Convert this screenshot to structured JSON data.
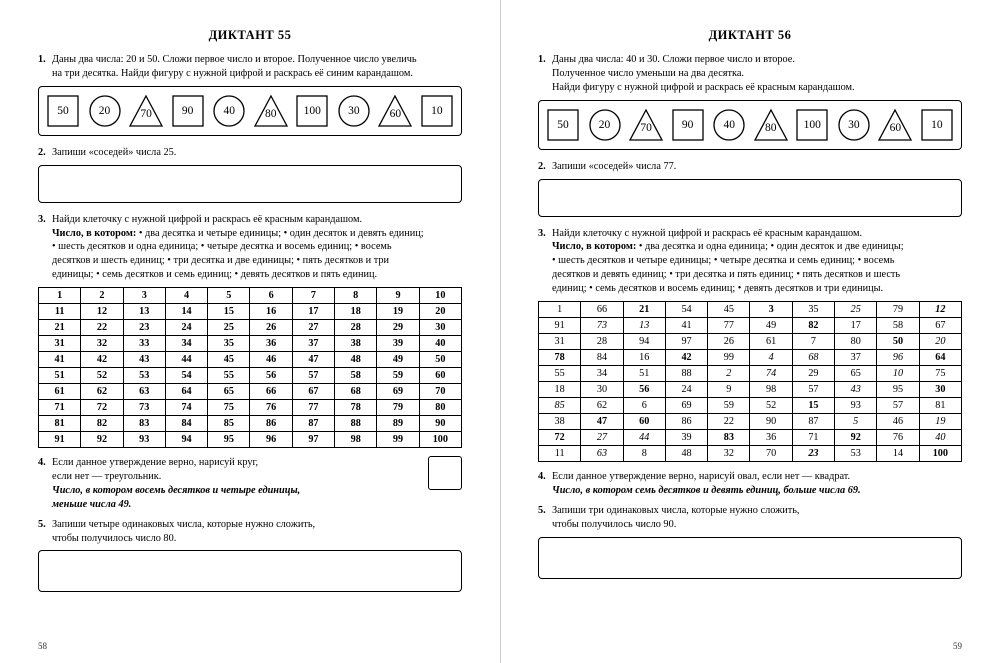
{
  "left": {
    "title": "ДИКТАНТ 55",
    "t1a": "Даны два числа: 20 и 50. Сложи первое число и второе. Полученное число увеличь",
    "t1b": "на три десятка. Найди фигуру с нужной цифрой и раскрась её синим карандашом.",
    "shapes": [
      {
        "t": "sq",
        "v": "50"
      },
      {
        "t": "ci",
        "v": "20"
      },
      {
        "t": "tr",
        "v": "70"
      },
      {
        "t": "sq",
        "v": "90"
      },
      {
        "t": "ci",
        "v": "40"
      },
      {
        "t": "tr",
        "v": "80"
      },
      {
        "t": "sq",
        "v": "100"
      },
      {
        "t": "ci",
        "v": "30"
      },
      {
        "t": "tr",
        "v": "60"
      },
      {
        "t": "sq",
        "v": "10"
      }
    ],
    "t2": "Запиши «соседей» числа 25.",
    "t3a": "Найди клеточку с нужной цифрой и раскрась её красным карандашом.",
    "t3b": "Число, в котором:",
    "t3c": "• два десятка и четыре единицы; • один десяток и девять единиц;",
    "t3d": "• шесть десятков и одна единица; • четыре десятка и восемь единиц; • восемь",
    "t3e": "десятков и шесть единиц; • три десятка и две единицы; • пять десятков и три",
    "t3f": "единицы; • семь десятков и семь единиц; • девять десятков и пять единиц.",
    "grid": [
      [
        "1",
        "2",
        "3",
        "4",
        "5",
        "6",
        "7",
        "8",
        "9",
        "10"
      ],
      [
        "11",
        "12",
        "13",
        "14",
        "15",
        "16",
        "17",
        "18",
        "19",
        "20"
      ],
      [
        "21",
        "22",
        "23",
        "24",
        "25",
        "26",
        "27",
        "28",
        "29",
        "30"
      ],
      [
        "31",
        "32",
        "33",
        "34",
        "35",
        "36",
        "37",
        "38",
        "39",
        "40"
      ],
      [
        "41",
        "42",
        "43",
        "44",
        "45",
        "46",
        "47",
        "48",
        "49",
        "50"
      ],
      [
        "51",
        "52",
        "53",
        "54",
        "55",
        "56",
        "57",
        "58",
        "59",
        "60"
      ],
      [
        "61",
        "62",
        "63",
        "64",
        "65",
        "66",
        "67",
        "68",
        "69",
        "70"
      ],
      [
        "71",
        "72",
        "73",
        "74",
        "75",
        "76",
        "77",
        "78",
        "79",
        "80"
      ],
      [
        "81",
        "82",
        "83",
        "84",
        "85",
        "86",
        "87",
        "88",
        "89",
        "90"
      ],
      [
        "91",
        "92",
        "93",
        "94",
        "95",
        "96",
        "97",
        "98",
        "99",
        "100"
      ]
    ],
    "t4a": "Если данное утверждение верно, нарисуй круг,",
    "t4b": "если нет — треугольник.",
    "t4c": "Число, в котором восемь десятков и четыре единицы,",
    "t4d": "меньше числа 49.",
    "t5a": "Запиши четыре одинаковых числа, которые нужно сложить,",
    "t5b": "чтобы получилось число 80.",
    "pagenum": "58"
  },
  "right": {
    "title": "ДИКТАНТ 56",
    "t1a": "Даны два числа: 40 и 30. Сложи первое число и второе.",
    "t1b": "Полученное число уменьши на два десятка.",
    "t1c": "Найди фигуру с нужной цифрой и раскрась её красным карандашом.",
    "shapes": [
      {
        "t": "sq",
        "v": "50"
      },
      {
        "t": "ci",
        "v": "20"
      },
      {
        "t": "tr",
        "v": "70"
      },
      {
        "t": "sq",
        "v": "90"
      },
      {
        "t": "ci",
        "v": "40"
      },
      {
        "t": "tr",
        "v": "80"
      },
      {
        "t": "sq",
        "v": "100"
      },
      {
        "t": "ci",
        "v": "30"
      },
      {
        "t": "tr",
        "v": "60"
      },
      {
        "t": "sq",
        "v": "10"
      }
    ],
    "t2": "Запиши «соседей» числа 77.",
    "t3a": "Найди клеточку с нужной цифрой и раскрась её красным карандашом.",
    "t3b": "Число, в котором:",
    "t3c": "• два десятка и одна единица; • один десяток и две единицы;",
    "t3d": "• шесть десятков и четыре единицы; • четыре десятка и семь единиц; • восемь",
    "t3e": "десятков и девять единиц; • три десятка и пять единиц; • пять десятков и шесть",
    "t3f": "единиц; • семь десятков и восемь единиц; • девять десятков и три единицы.",
    "grid": [
      [
        {
          "v": "1"
        },
        {
          "v": "66"
        },
        {
          "v": "21",
          "s": "b"
        },
        {
          "v": "54"
        },
        {
          "v": "45"
        },
        {
          "v": "3",
          "s": "b"
        },
        {
          "v": "35"
        },
        {
          "v": "25",
          "s": "i"
        },
        {
          "v": "79"
        },
        {
          "v": "12",
          "s": "bi"
        }
      ],
      [
        {
          "v": "91"
        },
        {
          "v": "73",
          "s": "i"
        },
        {
          "v": "13",
          "s": "i"
        },
        {
          "v": "41"
        },
        {
          "v": "77"
        },
        {
          "v": "49"
        },
        {
          "v": "82",
          "s": "b"
        },
        {
          "v": "17"
        },
        {
          "v": "58"
        },
        {
          "v": "67"
        }
      ],
      [
        {
          "v": "31"
        },
        {
          "v": "28"
        },
        {
          "v": "94"
        },
        {
          "v": "97"
        },
        {
          "v": "26"
        },
        {
          "v": "61"
        },
        {
          "v": "7"
        },
        {
          "v": "80"
        },
        {
          "v": "50",
          "s": "b"
        },
        {
          "v": "20",
          "s": "i"
        }
      ],
      [
        {
          "v": "78",
          "s": "b"
        },
        {
          "v": "84"
        },
        {
          "v": "16"
        },
        {
          "v": "42",
          "s": "b"
        },
        {
          "v": "99"
        },
        {
          "v": "4",
          "s": "i"
        },
        {
          "v": "68",
          "s": "i"
        },
        {
          "v": "37"
        },
        {
          "v": "96",
          "s": "i"
        },
        {
          "v": "64",
          "s": "b"
        }
      ],
      [
        {
          "v": "55"
        },
        {
          "v": "34"
        },
        {
          "v": "51"
        },
        {
          "v": "88"
        },
        {
          "v": "2",
          "s": "i"
        },
        {
          "v": "74",
          "s": "i"
        },
        {
          "v": "29"
        },
        {
          "v": "65"
        },
        {
          "v": "10",
          "s": "i"
        },
        {
          "v": "75"
        }
      ],
      [
        {
          "v": "18"
        },
        {
          "v": "30"
        },
        {
          "v": "56",
          "s": "b"
        },
        {
          "v": "24"
        },
        {
          "v": "9"
        },
        {
          "v": "98"
        },
        {
          "v": "57"
        },
        {
          "v": "43",
          "s": "i"
        },
        {
          "v": "95"
        },
        {
          "v": "30",
          "s": "b"
        }
      ],
      [
        {
          "v": "85",
          "s": "i"
        },
        {
          "v": "62"
        },
        {
          "v": "6"
        },
        {
          "v": "69"
        },
        {
          "v": "59"
        },
        {
          "v": "52"
        },
        {
          "v": "15",
          "s": "b"
        },
        {
          "v": "93"
        },
        {
          "v": "57"
        },
        {
          "v": "81"
        }
      ],
      [
        {
          "v": "38"
        },
        {
          "v": "47",
          "s": "b"
        },
        {
          "v": "60",
          "s": "b"
        },
        {
          "v": "86"
        },
        {
          "v": "22"
        },
        {
          "v": "90"
        },
        {
          "v": "87"
        },
        {
          "v": "5",
          "s": "i"
        },
        {
          "v": "46"
        },
        {
          "v": "19",
          "s": "i"
        }
      ],
      [
        {
          "v": "72",
          "s": "b"
        },
        {
          "v": "27",
          "s": "i"
        },
        {
          "v": "44",
          "s": "i"
        },
        {
          "v": "39"
        },
        {
          "v": "83",
          "s": "b"
        },
        {
          "v": "36"
        },
        {
          "v": "71"
        },
        {
          "v": "92",
          "s": "b"
        },
        {
          "v": "76"
        },
        {
          "v": "40",
          "s": "i"
        }
      ],
      [
        {
          "v": "11"
        },
        {
          "v": "63",
          "s": "i"
        },
        {
          "v": "8"
        },
        {
          "v": "48"
        },
        {
          "v": "32"
        },
        {
          "v": "70"
        },
        {
          "v": "23",
          "s": "bi"
        },
        {
          "v": "53"
        },
        {
          "v": "14"
        },
        {
          "v": "100",
          "s": "b"
        }
      ]
    ],
    "t4a": "Если данное утверждение верно, нарисуй овал, если нет — квадрат.",
    "t4b": "Число, в котором семь десятков и девять единиц, больше числа 69.",
    "t5a": "Запиши три одинаковых числа, которые нужно сложить,",
    "t5b": "чтобы получилось число 90.",
    "pagenum": "59"
  }
}
